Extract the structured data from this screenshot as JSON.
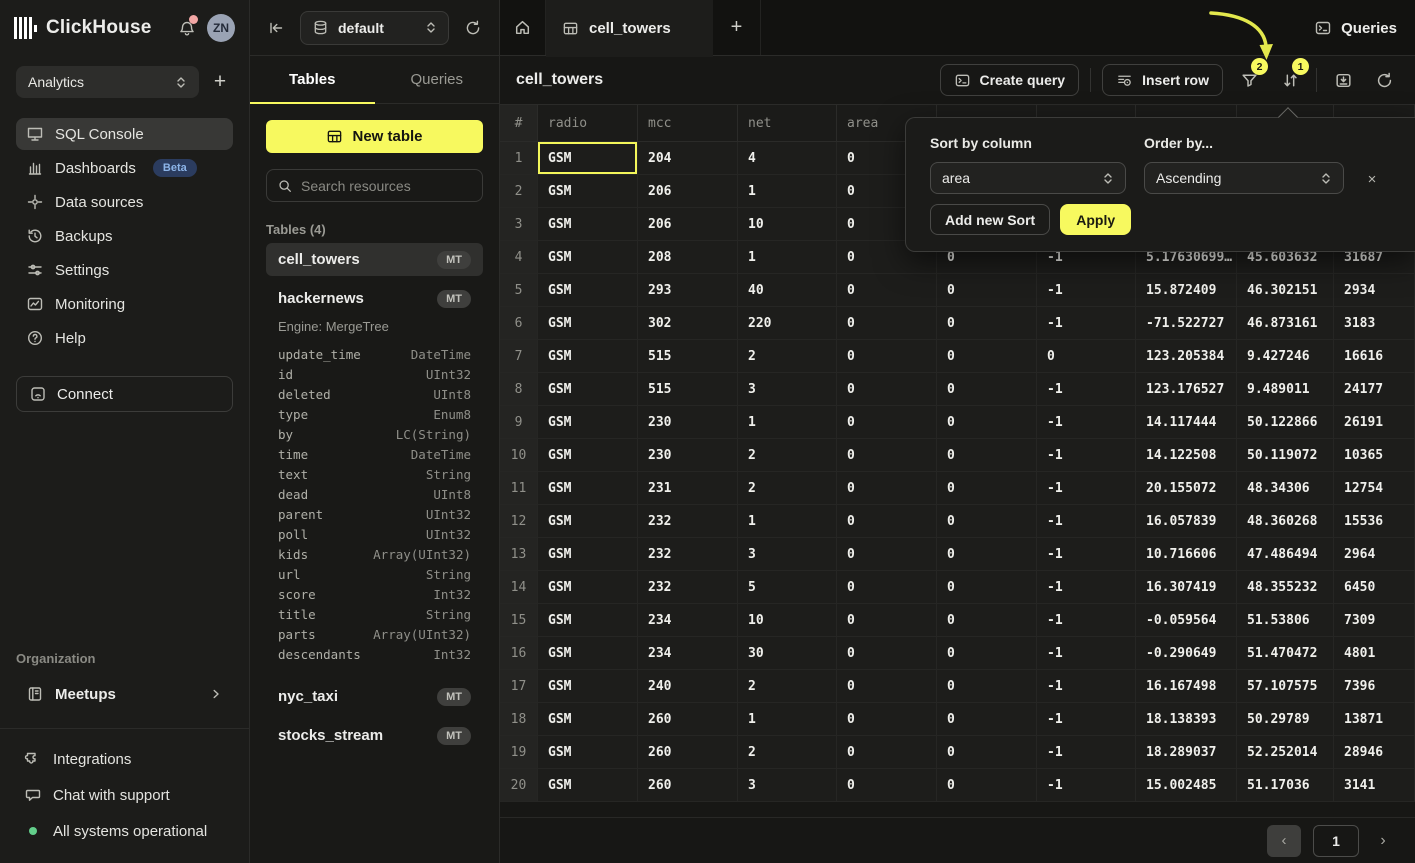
{
  "header": {
    "brand": "ClickHouse",
    "avatar": "ZN"
  },
  "sidebar": {
    "workspace": "Analytics",
    "nav": [
      {
        "label": "SQL Console",
        "active": true
      },
      {
        "label": "Dashboards",
        "badge": "Beta"
      },
      {
        "label": "Data sources"
      },
      {
        "label": "Backups"
      },
      {
        "label": "Settings"
      },
      {
        "label": "Monitoring"
      },
      {
        "label": "Help"
      }
    ],
    "connect": "Connect",
    "org_label": "Organization",
    "org_items": [
      {
        "label": "Meetups"
      }
    ],
    "footer": [
      {
        "label": "Integrations"
      },
      {
        "label": "Chat with support"
      },
      {
        "label": "All systems operational"
      }
    ]
  },
  "explorer": {
    "database": "default",
    "tabs": [
      {
        "label": "Tables",
        "active": true
      },
      {
        "label": "Queries",
        "active": false
      }
    ],
    "new_table": "New table",
    "search_placeholder": "Search resources",
    "section_label": "Tables (4)",
    "tables": [
      {
        "name": "cell_towers",
        "badge": "MT",
        "active": true
      },
      {
        "name": "hackernews",
        "badge": "MT",
        "engine": "Engine: MergeTree",
        "columns": [
          [
            "update_time",
            "DateTime"
          ],
          [
            "id",
            "UInt32"
          ],
          [
            "deleted",
            "UInt8"
          ],
          [
            "type",
            "Enum8"
          ],
          [
            "by",
            "LC(String)"
          ],
          [
            "time",
            "DateTime"
          ],
          [
            "text",
            "String"
          ],
          [
            "dead",
            "UInt8"
          ],
          [
            "parent",
            "UInt32"
          ],
          [
            "poll",
            "UInt32"
          ],
          [
            "kids",
            "Array(UInt32)"
          ],
          [
            "url",
            "String"
          ],
          [
            "score",
            "Int32"
          ],
          [
            "title",
            "String"
          ],
          [
            "parts",
            "Array(UInt32)"
          ],
          [
            "descendants",
            "Int32"
          ]
        ]
      },
      {
        "name": "nyc_taxi",
        "badge": "MT"
      },
      {
        "name": "stocks_stream",
        "badge": "MT"
      }
    ]
  },
  "main": {
    "tab": "cell_towers",
    "queries_link": "Queries",
    "title": "cell_towers",
    "create_query": "Create query",
    "insert_row": "Insert row",
    "filter_badge": "2",
    "sort_badge": "1",
    "table": {
      "headers": [
        "#",
        "radio",
        "mcc",
        "net",
        "area",
        "",
        "",
        "",
        "",
        ""
      ],
      "rows": [
        [
          "1",
          "GSM",
          "204",
          "4",
          "0",
          "",
          "",
          "",
          "",
          ""
        ],
        [
          "2",
          "GSM",
          "206",
          "1",
          "0",
          "",
          "",
          "",
          "",
          ""
        ],
        [
          "3",
          "GSM",
          "206",
          "10",
          "0",
          "",
          "",
          "",
          "",
          ""
        ],
        [
          "4",
          "GSM",
          "208",
          "1",
          "0",
          "0",
          "-1",
          "5.17630699…",
          "45.603632",
          "31687"
        ],
        [
          "5",
          "GSM",
          "293",
          "40",
          "0",
          "0",
          "-1",
          "15.872409",
          "46.302151",
          "2934"
        ],
        [
          "6",
          "GSM",
          "302",
          "220",
          "0",
          "0",
          "-1",
          "-71.522727",
          "46.873161",
          "3183"
        ],
        [
          "7",
          "GSM",
          "515",
          "2",
          "0",
          "0",
          "0",
          "123.205384",
          "9.427246",
          "16616"
        ],
        [
          "8",
          "GSM",
          "515",
          "3",
          "0",
          "0",
          "-1",
          "123.176527",
          "9.489011",
          "24177"
        ],
        [
          "9",
          "GSM",
          "230",
          "1",
          "0",
          "0",
          "-1",
          "14.117444",
          "50.122866",
          "26191"
        ],
        [
          "10",
          "GSM",
          "230",
          "2",
          "0",
          "0",
          "-1",
          "14.122508",
          "50.119072",
          "10365"
        ],
        [
          "11",
          "GSM",
          "231",
          "2",
          "0",
          "0",
          "-1",
          "20.155072",
          "48.34306",
          "12754"
        ],
        [
          "12",
          "GSM",
          "232",
          "1",
          "0",
          "0",
          "-1",
          "16.057839",
          "48.360268",
          "15536"
        ],
        [
          "13",
          "GSM",
          "232",
          "3",
          "0",
          "0",
          "-1",
          "10.716606",
          "47.486494",
          "2964"
        ],
        [
          "14",
          "GSM",
          "232",
          "5",
          "0",
          "0",
          "-1",
          "16.307419",
          "48.355232",
          "6450"
        ],
        [
          "15",
          "GSM",
          "234",
          "10",
          "0",
          "0",
          "-1",
          "-0.059564",
          "51.53806",
          "7309"
        ],
        [
          "16",
          "GSM",
          "234",
          "30",
          "0",
          "0",
          "-1",
          "-0.290649",
          "51.470472",
          "4801"
        ],
        [
          "17",
          "GSM",
          "240",
          "2",
          "0",
          "0",
          "-1",
          "16.167498",
          "57.107575",
          "7396"
        ],
        [
          "18",
          "GSM",
          "260",
          "1",
          "0",
          "0",
          "-1",
          "18.138393",
          "50.29789",
          "13871"
        ],
        [
          "19",
          "GSM",
          "260",
          "2",
          "0",
          "0",
          "-1",
          "18.289037",
          "52.252014",
          "28946"
        ],
        [
          "20",
          "GSM",
          "260",
          "3",
          "0",
          "0",
          "-1",
          "15.002485",
          "51.17036",
          "3141"
        ]
      ]
    },
    "pagination": {
      "page": "1"
    }
  },
  "sort_popup": {
    "sort_label": "Sort by column",
    "order_label": "Order by...",
    "column_value": "area",
    "order_value": "Ascending",
    "add_button": "Add new Sort",
    "apply_button": "Apply",
    "close": "×"
  },
  "colors": {
    "accent_yellow": "#f7f95f",
    "beta_badge_blue": "#2b3c5f",
    "status_green": "#63cf8b",
    "notification_red": "#f2a6a4",
    "annotation_arrow": "#e3e84d"
  }
}
